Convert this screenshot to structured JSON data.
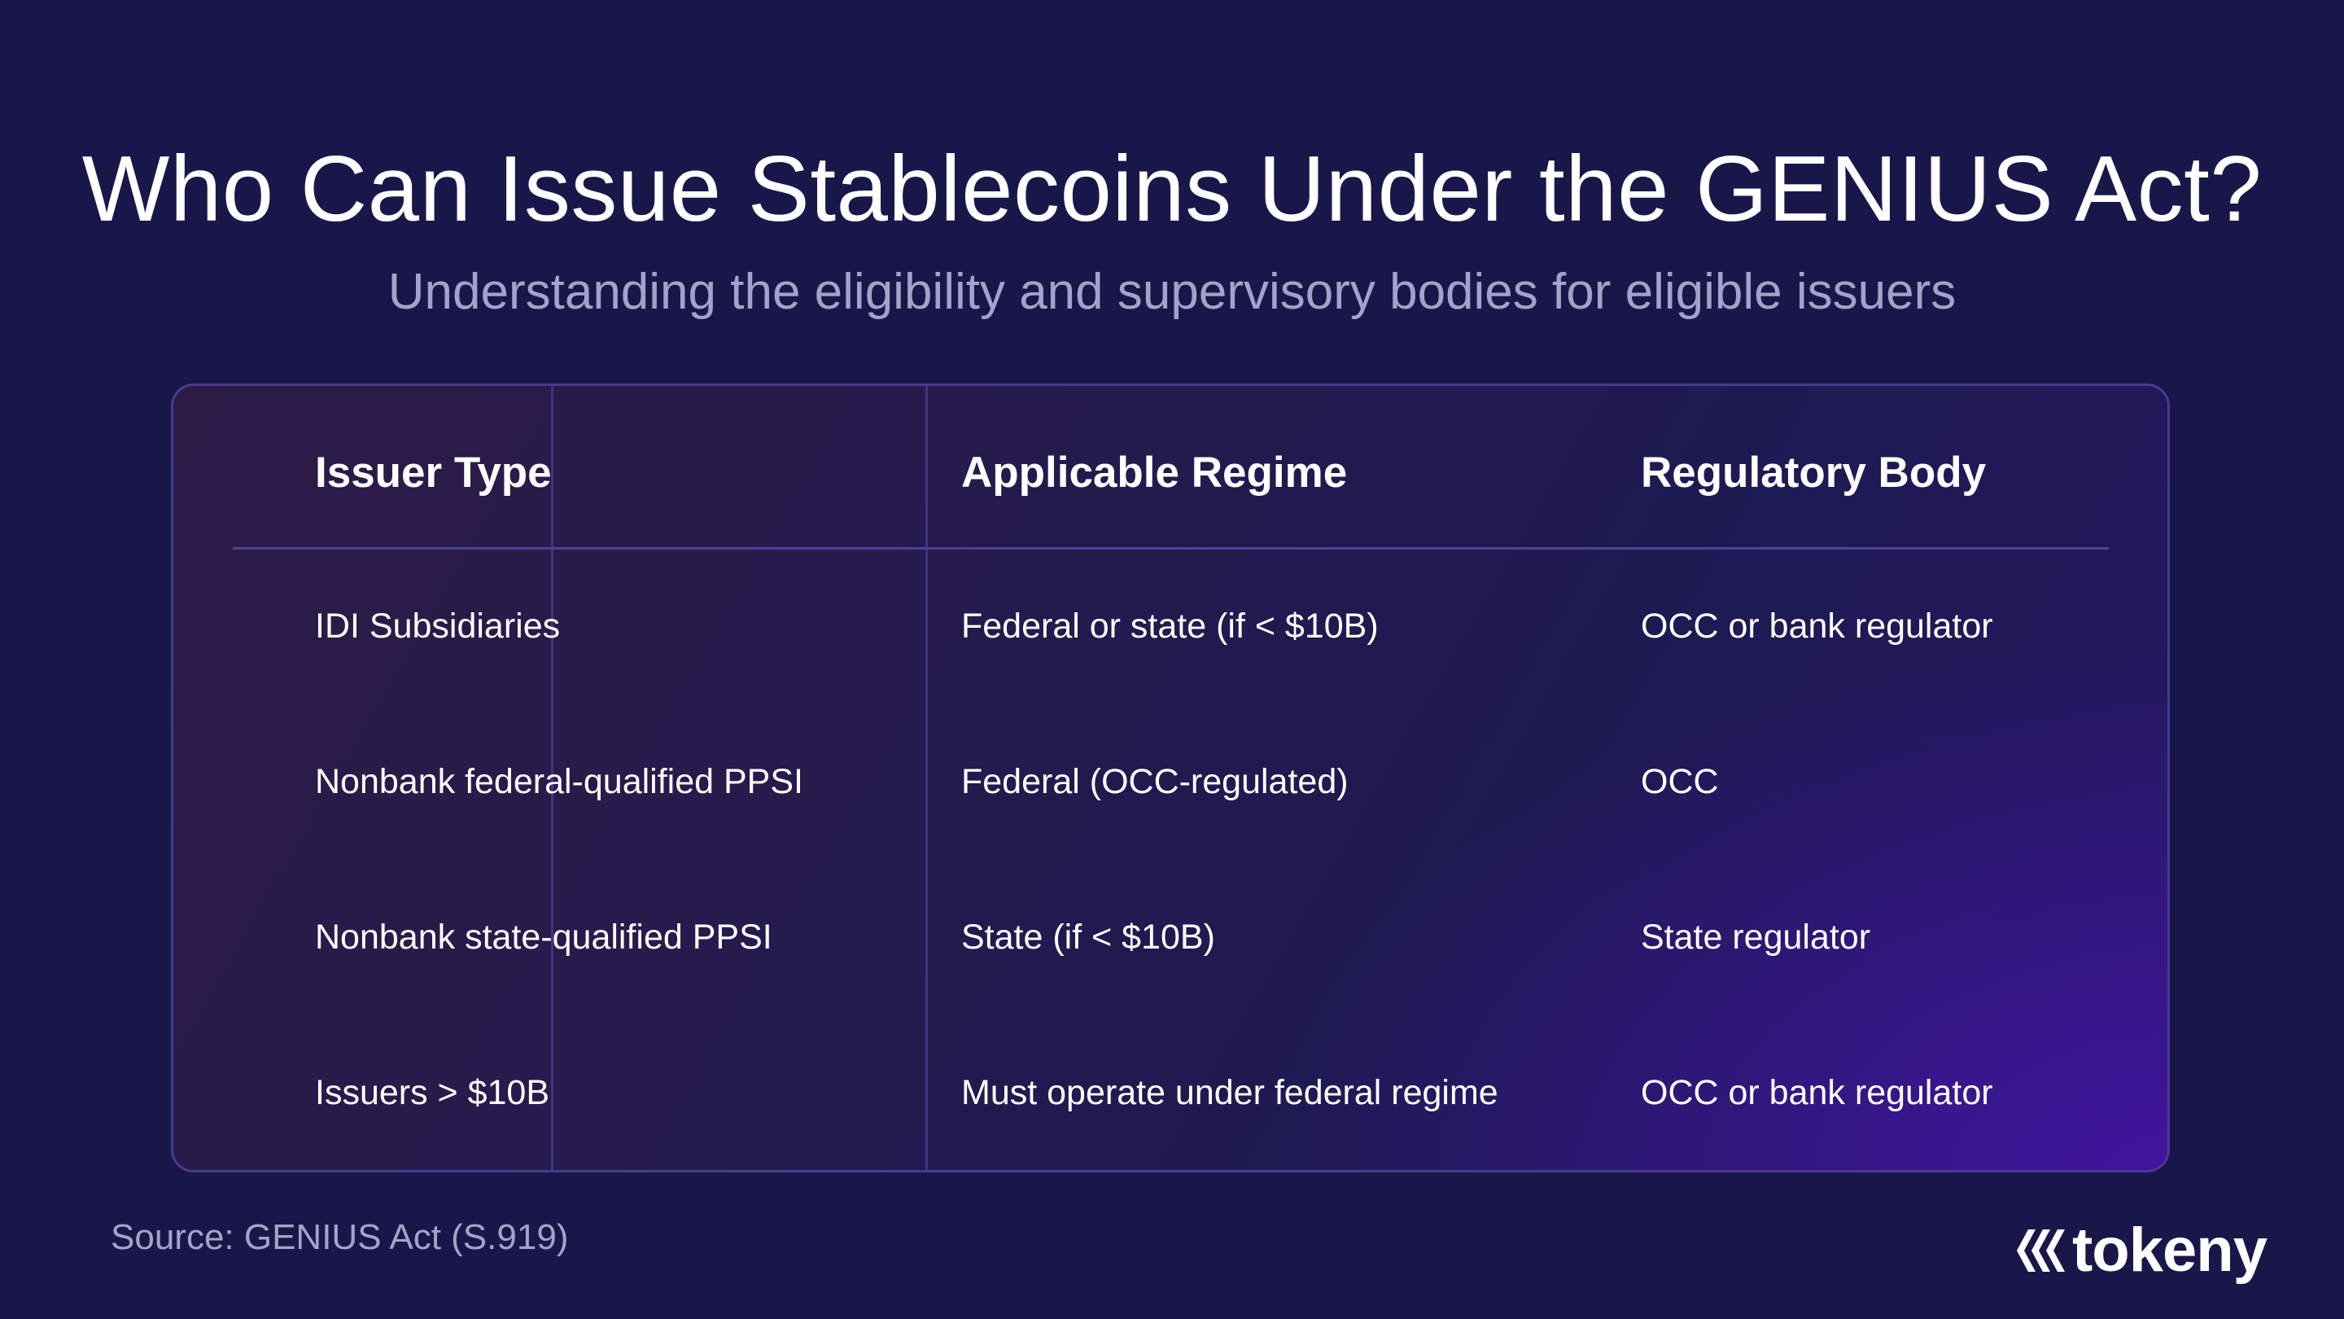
{
  "title": "Who Can Issue Stablecoins Under the GENIUS Act?",
  "subtitle": "Understanding the eligibility and supervisory bodies for eligible issuers",
  "table": {
    "headers": [
      "Issuer Type",
      "Applicable Regime",
      "Regulatory Body"
    ],
    "rows": [
      [
        "IDI Subsidiaries",
        "Federal or state (if < $10B)",
        "OCC or bank regulator"
      ],
      [
        "Nonbank federal-qualified PPSI",
        "Federal (OCC-regulated)",
        "OCC"
      ],
      [
        "Nonbank state-qualified PPSI",
        "State (if < $10B)",
        "State regulator"
      ],
      [
        "Issuers > $10B",
        "Must operate under federal regime",
        "OCC or bank regulator"
      ]
    ]
  },
  "footer": {
    "source": "Source: GENIUS Act (S.919)",
    "logo_text": "tokeny",
    "logo_icon": "tokeny-logo-icon"
  },
  "colors": {
    "background": "#19174a",
    "subtitle": "#a5a2c9",
    "card_border": "#473b8f",
    "accent_purple": "#4614aa"
  }
}
